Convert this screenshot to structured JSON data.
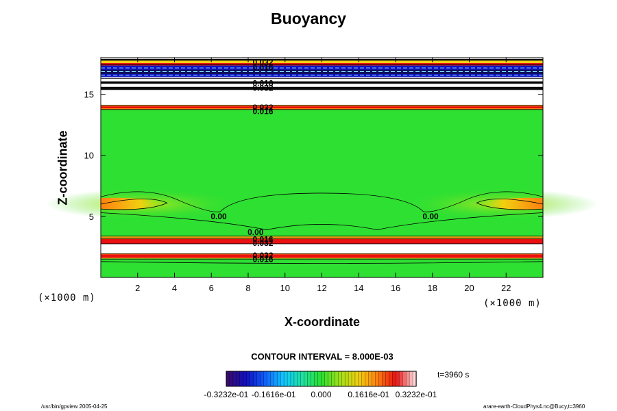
{
  "chart_data": {
    "type": "heatmap",
    "title": "Buoyancy",
    "xlabel": "X-coordinate",
    "ylabel": "Z-coordinate",
    "x_unit": "(×1000 m)",
    "y_unit": "(×1000 m)",
    "xlim": [
      0,
      24
    ],
    "ylim": [
      0,
      18
    ],
    "x_ticks": [
      2,
      4,
      6,
      8,
      10,
      12,
      14,
      16,
      18,
      20,
      22
    ],
    "y_ticks": [
      5,
      10,
      15
    ],
    "contour_interval_text": "CONTOUR INTERVAL = 8.000E-03",
    "time_text": "t=3960 s",
    "colorbar": {
      "min": -0.03232,
      "max": 0.03232,
      "tick_labels": [
        "-0.3232e-01",
        "-0.1616e-01",
        "0.000",
        "0.1616e-01",
        "0.3232e-01"
      ],
      "colors": [
        "#3a0a6e",
        "#1010c0",
        "#1060ff",
        "#10c8ff",
        "#20e0a0",
        "#28e030",
        "#a0e018",
        "#f0d010",
        "#ff8010",
        "#e81010",
        "#ffd8d8"
      ]
    },
    "contour_labels": [
      {
        "x": 6.4,
        "z": 5.0,
        "text": "0.00"
      },
      {
        "x": 17.9,
        "z": 5.0,
        "text": "0.00"
      },
      {
        "x": 8.4,
        "z": 3.7,
        "text": "0.00"
      },
      {
        "x": 8.8,
        "z": 3.1,
        "text": "0.016"
      },
      {
        "x": 8.8,
        "z": 2.8,
        "text": "0.032"
      },
      {
        "x": 8.8,
        "z": 1.8,
        "text": "0.032"
      },
      {
        "x": 8.8,
        "z": 1.5,
        "text": "0.016"
      },
      {
        "x": 8.8,
        "z": 13.9,
        "text": "0.032"
      },
      {
        "x": 8.8,
        "z": 13.6,
        "text": "0.016"
      },
      {
        "x": 8.8,
        "z": 15.9,
        "text": "0.016"
      },
      {
        "x": 8.8,
        "z": 15.5,
        "text": "0.032"
      },
      {
        "x": 8.8,
        "z": 17.6,
        "text": "0.032"
      },
      {
        "x": 8.8,
        "z": 17.2,
        "text": "0.016"
      }
    ]
  },
  "footer": {
    "left": "/usr/bin/gpview 2005-04-25",
    "right": "arare-earth-CloudPhys4.nc@Bucy,t=3960"
  }
}
